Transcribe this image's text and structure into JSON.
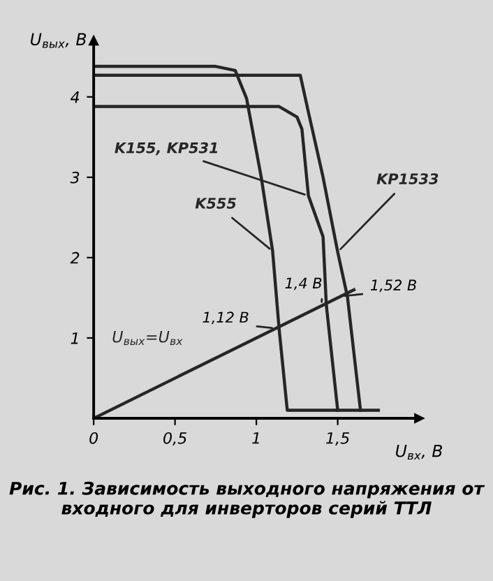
{
  "chart_data": {
    "type": "line",
    "xlabel": "U$_{вх}$, В",
    "ylabel": "U$_{вых}$, В",
    "series": [
      {
        "name": "K555",
        "color": "#262626",
        "x": [
          0,
          0.75,
          0.87,
          0.94,
          1.03,
          1.1,
          1.14,
          1.19,
          1.75
        ],
        "values": [
          4.38,
          4.38,
          4.33,
          3.98,
          3.0,
          2.08,
          1.11,
          0.1,
          0.1
        ]
      },
      {
        "name": "K155, KP531",
        "color": "#262626",
        "x": [
          0,
          1.14,
          1.25,
          1.28,
          1.32,
          1.41,
          1.43,
          1.5
        ],
        "values": [
          3.88,
          3.88,
          3.75,
          3.6,
          2.77,
          2.26,
          1.41,
          0.1
        ]
      },
      {
        "name": "KP1533",
        "color": "#262626",
        "x": [
          0,
          1.27,
          1.32,
          1.41,
          1.5,
          1.56,
          1.64
        ],
        "values": [
          4.27,
          4.27,
          3.81,
          3.0,
          2.07,
          1.51,
          0.1
        ]
      },
      {
        "name": "U$_{вых}$=U$_{вх}$",
        "color": "#262626",
        "x": [
          0,
          1.6
        ],
        "values": [
          0,
          1.6
        ]
      }
    ],
    "xlim": [
      0,
      2.0
    ],
    "ylim": [
      0,
      4.7
    ],
    "xticks": [
      0,
      {
        "value": 0.5,
        "label": "0,5"
      },
      1,
      {
        "value": 1.5,
        "label": "1,5"
      }
    ],
    "yticks": [
      1,
      2,
      3,
      4
    ],
    "grid": false,
    "legend": false,
    "marker": "none",
    "line_style": "solid",
    "annotations": [
      {
        "text": "1,12 В",
        "x": 1.12,
        "y": 1.12
      },
      {
        "text": "1,4 В",
        "x": 1.4,
        "y": 1.4
      },
      {
        "text": "1,52 В",
        "x": 1.52,
        "y": 1.52
      },
      "Рис. 1. Зависимость выходного напряжения от входного для инверторов серий ТТЛ"
    ]
  }
}
